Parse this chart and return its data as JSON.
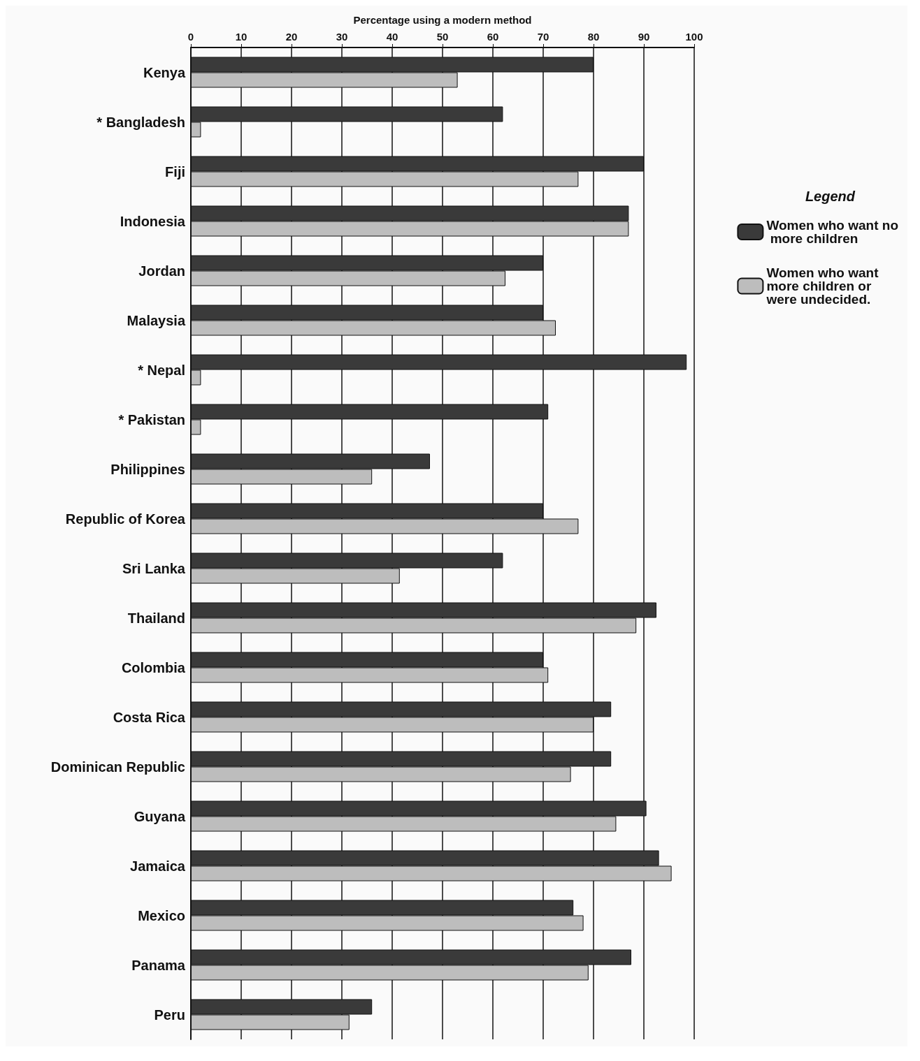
{
  "chart_data": {
    "type": "bar",
    "orientation": "horizontal",
    "xlabel": "Percentage using a modern method",
    "legend_title": "Legend",
    "categories": [
      "Kenya",
      "* Bangladesh",
      "Fiji",
      "Indonesia",
      "Jordan",
      "Malaysia",
      "* Nepal",
      "* Pakistan",
      "Philippines",
      "Republic of Korea",
      "Sri Lanka",
      "Thailand",
      "Colombia",
      "Costa Rica",
      "Dominican Republic",
      "Guyana",
      "Jamaica",
      "Mexico",
      "Panama",
      "Peru"
    ],
    "series": [
      {
        "name": "Women who want no more children",
        "color": "#3a3a3a",
        "values": [
          80,
          62,
          90,
          87,
          70,
          70,
          98.5,
          71,
          47.5,
          70,
          62,
          92.5,
          70,
          83.5,
          83.5,
          90.5,
          93,
          76,
          87.5,
          36
        ]
      },
      {
        "name": "Women who want more children or were undecided.",
        "color": "#bdbdbd",
        "values": [
          53,
          2,
          77,
          87,
          62.5,
          72.5,
          2,
          2,
          36,
          77,
          41.5,
          88.5,
          71,
          80,
          75.5,
          84.5,
          95.5,
          78,
          79,
          31.5
        ]
      }
    ],
    "xlim": [
      0,
      100
    ],
    "xticks": [
      0,
      10,
      20,
      30,
      40,
      50,
      60,
      70,
      80,
      90,
      100
    ],
    "grid": "x",
    "legend": "right"
  }
}
